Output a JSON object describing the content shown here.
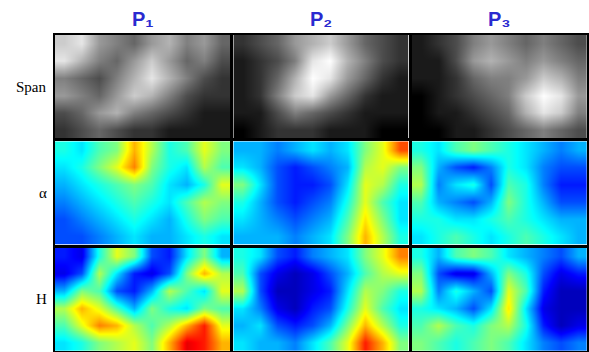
{
  "chart_data": [
    {
      "type": "heatmap",
      "title": "P₁",
      "ylabel": "Span",
      "color": "gray",
      "tick_labels": false,
      "zlim": [
        0,
        1
      ],
      "z": [
        [
          0.8,
          0.9,
          0.6,
          0.5,
          0.4,
          0.6,
          0.7,
          0.5,
          0.6,
          0.4
        ],
        [
          0.9,
          0.7,
          0.5,
          0.4,
          0.6,
          0.8,
          0.6,
          0.4,
          0.5,
          0.3
        ],
        [
          0.5,
          0.4,
          0.3,
          0.5,
          0.7,
          0.9,
          0.7,
          0.5,
          0.3,
          0.2
        ],
        [
          0.6,
          0.5,
          0.4,
          0.6,
          0.8,
          0.7,
          0.5,
          0.3,
          0.2,
          0.2
        ],
        [
          0.3,
          0.4,
          0.6,
          0.7,
          0.5,
          0.4,
          0.3,
          0.2,
          0.1,
          0.1
        ],
        [
          0.2,
          0.3,
          0.4,
          0.3,
          0.2,
          0.2,
          0.1,
          0.1,
          0.1,
          0.1
        ]
      ]
    },
    {
      "type": "heatmap",
      "title": "P₂",
      "color": "gray",
      "tick_labels": false,
      "zlim": [
        0,
        1
      ],
      "z": [
        [
          0.2,
          0.3,
          0.4,
          0.6,
          0.7,
          0.8,
          0.6,
          0.4,
          0.3,
          0.2
        ],
        [
          0.1,
          0.2,
          0.3,
          0.5,
          0.9,
          1.0,
          0.7,
          0.5,
          0.3,
          0.2
        ],
        [
          0.1,
          0.2,
          0.4,
          0.7,
          1.0,
          0.9,
          0.6,
          0.4,
          0.2,
          0.1
        ],
        [
          0.1,
          0.2,
          0.5,
          0.8,
          0.9,
          0.6,
          0.4,
          0.2,
          0.1,
          0.1
        ],
        [
          0.1,
          0.1,
          0.3,
          0.5,
          0.4,
          0.3,
          0.2,
          0.1,
          0.1,
          0.1
        ],
        [
          0.0,
          0.1,
          0.2,
          0.2,
          0.2,
          0.1,
          0.1,
          0.1,
          0.0,
          0.0
        ]
      ]
    },
    {
      "type": "heatmap",
      "title": "P₃",
      "color": "gray",
      "tick_labels": false,
      "zlim": [
        0,
        1
      ],
      "z": [
        [
          0.1,
          0.2,
          0.3,
          0.5,
          0.6,
          0.5,
          0.4,
          0.5,
          0.4,
          0.3
        ],
        [
          0.1,
          0.1,
          0.3,
          0.6,
          0.7,
          0.6,
          0.5,
          0.6,
          0.5,
          0.4
        ],
        [
          0.1,
          0.1,
          0.2,
          0.4,
          0.5,
          0.5,
          0.6,
          0.8,
          0.7,
          0.5
        ],
        [
          0.0,
          0.1,
          0.2,
          0.3,
          0.4,
          0.5,
          0.8,
          1.0,
          0.9,
          0.6
        ],
        [
          0.0,
          0.1,
          0.1,
          0.2,
          0.3,
          0.4,
          0.7,
          0.9,
          0.8,
          0.5
        ],
        [
          0.0,
          0.0,
          0.1,
          0.1,
          0.2,
          0.3,
          0.4,
          0.5,
          0.4,
          0.3
        ]
      ]
    },
    {
      "type": "heatmap",
      "ylabel": "α",
      "color": "jet",
      "tick_labels": false,
      "zlim": [
        0,
        1
      ],
      "z": [
        [
          0.4,
          0.35,
          0.45,
          0.5,
          0.7,
          0.55,
          0.4,
          0.45,
          0.6,
          0.5
        ],
        [
          0.35,
          0.4,
          0.5,
          0.6,
          0.75,
          0.5,
          0.4,
          0.35,
          0.55,
          0.45
        ],
        [
          0.3,
          0.35,
          0.4,
          0.45,
          0.5,
          0.45,
          0.35,
          0.3,
          0.4,
          0.6
        ],
        [
          0.25,
          0.3,
          0.35,
          0.4,
          0.45,
          0.4,
          0.35,
          0.45,
          0.55,
          0.5
        ],
        [
          0.2,
          0.25,
          0.3,
          0.35,
          0.4,
          0.35,
          0.3,
          0.4,
          0.5,
          0.45
        ],
        [
          0.2,
          0.2,
          0.25,
          0.3,
          0.35,
          0.3,
          0.3,
          0.35,
          0.4,
          0.35
        ]
      ]
    },
    {
      "type": "heatmap",
      "color": "jet",
      "tick_labels": false,
      "zlim": [
        0,
        1
      ],
      "z": [
        [
          0.3,
          0.3,
          0.25,
          0.3,
          0.35,
          0.3,
          0.35,
          0.5,
          0.6,
          0.8
        ],
        [
          0.35,
          0.3,
          0.2,
          0.15,
          0.2,
          0.25,
          0.3,
          0.55,
          0.6,
          0.5
        ],
        [
          0.5,
          0.35,
          0.2,
          0.15,
          0.15,
          0.2,
          0.35,
          0.6,
          0.55,
          0.4
        ],
        [
          0.4,
          0.3,
          0.2,
          0.15,
          0.2,
          0.25,
          0.4,
          0.6,
          0.45,
          0.35
        ],
        [
          0.35,
          0.3,
          0.25,
          0.2,
          0.25,
          0.3,
          0.45,
          0.65,
          0.5,
          0.35
        ],
        [
          0.3,
          0.3,
          0.3,
          0.25,
          0.3,
          0.35,
          0.5,
          0.7,
          0.55,
          0.4
        ]
      ]
    },
    {
      "type": "heatmap",
      "color": "jet",
      "tick_labels": false,
      "zlim": [
        0,
        1
      ],
      "z": [
        [
          0.4,
          0.35,
          0.45,
          0.5,
          0.45,
          0.4,
          0.35,
          0.3,
          0.25,
          0.3
        ],
        [
          0.5,
          0.3,
          0.2,
          0.15,
          0.25,
          0.4,
          0.35,
          0.25,
          0.2,
          0.2
        ],
        [
          0.55,
          0.25,
          0.35,
          0.4,
          0.2,
          0.45,
          0.4,
          0.25,
          0.15,
          0.15
        ],
        [
          0.45,
          0.3,
          0.25,
          0.2,
          0.3,
          0.5,
          0.4,
          0.3,
          0.2,
          0.2
        ],
        [
          0.4,
          0.4,
          0.35,
          0.35,
          0.4,
          0.45,
          0.4,
          0.35,
          0.3,
          0.3
        ],
        [
          0.35,
          0.4,
          0.45,
          0.4,
          0.35,
          0.4,
          0.45,
          0.4,
          0.35,
          0.3
        ]
      ]
    },
    {
      "type": "heatmap",
      "ylabel": "H",
      "color": "jet",
      "tick_labels": false,
      "zlim": [
        0,
        1
      ],
      "z": [
        [
          0.15,
          0.1,
          0.4,
          0.6,
          0.5,
          0.2,
          0.15,
          0.35,
          0.5,
          0.3
        ],
        [
          0.1,
          0.2,
          0.55,
          0.35,
          0.15,
          0.1,
          0.2,
          0.5,
          0.7,
          0.55
        ],
        [
          0.3,
          0.5,
          0.45,
          0.2,
          0.15,
          0.3,
          0.55,
          0.45,
          0.35,
          0.6
        ],
        [
          0.55,
          0.7,
          0.6,
          0.45,
          0.3,
          0.5,
          0.4,
          0.35,
          0.5,
          0.45
        ],
        [
          0.45,
          0.6,
          0.75,
          0.7,
          0.55,
          0.45,
          0.55,
          0.7,
          0.85,
          0.6
        ],
        [
          0.35,
          0.4,
          0.5,
          0.55,
          0.6,
          0.5,
          0.7,
          0.9,
          0.85,
          0.7
        ]
      ]
    },
    {
      "type": "heatmap",
      "color": "jet",
      "tick_labels": false,
      "zlim": [
        0,
        1
      ],
      "z": [
        [
          0.4,
          0.35,
          0.2,
          0.15,
          0.25,
          0.3,
          0.35,
          0.5,
          0.6,
          0.75
        ],
        [
          0.45,
          0.2,
          0.1,
          0.05,
          0.1,
          0.2,
          0.3,
          0.45,
          0.55,
          0.6
        ],
        [
          0.55,
          0.2,
          0.05,
          0.05,
          0.1,
          0.15,
          0.35,
          0.55,
          0.5,
          0.4
        ],
        [
          0.35,
          0.25,
          0.1,
          0.05,
          0.15,
          0.2,
          0.4,
          0.6,
          0.45,
          0.35
        ],
        [
          0.3,
          0.35,
          0.2,
          0.15,
          0.2,
          0.3,
          0.5,
          0.7,
          0.55,
          0.4
        ],
        [
          0.35,
          0.3,
          0.3,
          0.25,
          0.35,
          0.45,
          0.6,
          0.85,
          0.7,
          0.5
        ]
      ]
    },
    {
      "type": "heatmap",
      "color": "jet",
      "tick_labels": false,
      "zlim": [
        0,
        1
      ],
      "z": [
        [
          0.4,
          0.3,
          0.45,
          0.5,
          0.45,
          0.35,
          0.3,
          0.25,
          0.2,
          0.3
        ],
        [
          0.5,
          0.2,
          0.1,
          0.1,
          0.3,
          0.5,
          0.4,
          0.2,
          0.1,
          0.15
        ],
        [
          0.55,
          0.25,
          0.4,
          0.3,
          0.2,
          0.6,
          0.45,
          0.15,
          0.05,
          0.05
        ],
        [
          0.4,
          0.35,
          0.3,
          0.2,
          0.35,
          0.65,
          0.35,
          0.1,
          0.05,
          0.05
        ],
        [
          0.45,
          0.55,
          0.45,
          0.4,
          0.5,
          0.55,
          0.4,
          0.15,
          0.05,
          0.1
        ],
        [
          0.5,
          0.45,
          0.4,
          0.45,
          0.5,
          0.45,
          0.35,
          0.25,
          0.2,
          0.25
        ]
      ]
    }
  ]
}
